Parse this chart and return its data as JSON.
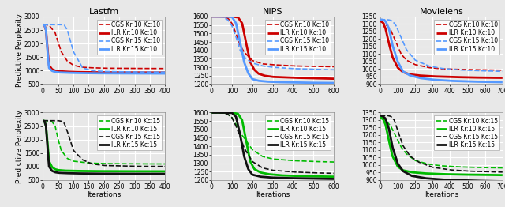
{
  "datasets": {
    "lastfm_top": {
      "title": "Lastfm",
      "xlim": [
        0,
        400
      ],
      "ylim": [
        500,
        3000
      ],
      "yticks": [
        500,
        1000,
        1500,
        2000,
        2500,
        3000
      ],
      "xticks": [
        0,
        50,
        100,
        150,
        200,
        250,
        300,
        350,
        400
      ],
      "series": [
        {
          "label": "CGS Kr:10 Kc:10",
          "color": "#cc0000",
          "style": "dashed",
          "lw": 1.2,
          "x": [
            1,
            10,
            20,
            40,
            60,
            80,
            100,
            125,
            150,
            200,
            250,
            300,
            350,
            400
          ],
          "y": [
            2700,
            2700,
            2680,
            2400,
            1700,
            1350,
            1200,
            1130,
            1110,
            1090,
            1085,
            1082,
            1080,
            1078
          ]
        },
        {
          "label": "ILR Kr:10 Kc:10",
          "color": "#cc0000",
          "style": "solid",
          "lw": 2.0,
          "x": [
            1,
            5,
            10,
            15,
            20,
            30,
            40,
            50,
            70,
            100,
            150,
            200,
            300,
            400
          ],
          "y": [
            2700,
            2680,
            2500,
            1800,
            1200,
            1050,
            1000,
            980,
            965,
            950,
            940,
            935,
            930,
            928
          ]
        },
        {
          "label": "CGS Kr:15 Kc:10",
          "color": "#5599ff",
          "style": "dashed",
          "lw": 1.2,
          "x": [
            1,
            10,
            30,
            50,
            60,
            70,
            80,
            100,
            130,
            160,
            200,
            250,
            300,
            350,
            400
          ],
          "y": [
            2700,
            2700,
            2700,
            2700,
            2700,
            2680,
            2500,
            1700,
            1100,
            1000,
            970,
            960,
            952,
            948,
            945
          ]
        },
        {
          "label": "ILR Kr:15 Kc:10",
          "color": "#5599ff",
          "style": "solid",
          "lw": 2.0,
          "x": [
            1,
            5,
            10,
            15,
            20,
            30,
            40,
            50,
            70,
            100,
            150,
            200,
            300,
            400
          ],
          "y": [
            2700,
            2690,
            2500,
            1700,
            1100,
            990,
            950,
            935,
            925,
            915,
            905,
            900,
            895,
            892
          ]
        }
      ]
    },
    "nips_top": {
      "title": "NIPS",
      "xlim": [
        0,
        600
      ],
      "ylim": [
        1200,
        1600
      ],
      "yticks": [
        1200,
        1250,
        1300,
        1350,
        1400,
        1450,
        1500,
        1550,
        1600
      ],
      "xticks": [
        0,
        100,
        200,
        300,
        400,
        500,
        600
      ],
      "series": [
        {
          "label": "CGS Kr:10 Kc:10",
          "color": "#cc0000",
          "style": "dashed",
          "lw": 1.2,
          "x": [
            1,
            50,
            80,
            100,
            120,
            140,
            160,
            200,
            250,
            300,
            400,
            500,
            600
          ],
          "y": [
            1600,
            1600,
            1590,
            1560,
            1500,
            1430,
            1390,
            1340,
            1320,
            1315,
            1308,
            1305,
            1303
          ]
        },
        {
          "label": "ILR Kr:10 Kc:10",
          "color": "#cc0000",
          "style": "solid",
          "lw": 2.0,
          "x": [
            1,
            50,
            100,
            130,
            150,
            170,
            190,
            210,
            230,
            260,
            300,
            400,
            500,
            600
          ],
          "y": [
            1600,
            1600,
            1600,
            1595,
            1560,
            1440,
            1330,
            1285,
            1262,
            1250,
            1243,
            1238,
            1235,
            1232
          ]
        },
        {
          "label": "CGS Kr:15 Kc:10",
          "color": "#5599ff",
          "style": "dashed",
          "lw": 1.2,
          "x": [
            1,
            50,
            80,
            100,
            120,
            140,
            160,
            200,
            250,
            300,
            400,
            500,
            600
          ],
          "y": [
            1600,
            1600,
            1580,
            1545,
            1480,
            1400,
            1360,
            1325,
            1308,
            1300,
            1292,
            1288,
            1285
          ]
        },
        {
          "label": "ILR Kr:15 Kc:10",
          "color": "#5599ff",
          "style": "solid",
          "lw": 2.0,
          "x": [
            1,
            50,
            100,
            120,
            140,
            160,
            180,
            200,
            230,
            270,
            320,
            400,
            500,
            600
          ],
          "y": [
            1600,
            1600,
            1598,
            1560,
            1450,
            1330,
            1265,
            1230,
            1220,
            1215,
            1212,
            1210,
            1208,
            1207
          ]
        }
      ]
    },
    "movielens_top": {
      "title": "Movielens",
      "xlim": [
        0,
        700
      ],
      "ylim": [
        900,
        1350
      ],
      "yticks": [
        900,
        950,
        1000,
        1050,
        1100,
        1150,
        1200,
        1250,
        1300,
        1350
      ],
      "xticks": [
        0,
        100,
        200,
        300,
        400,
        500,
        600,
        700
      ],
      "series": [
        {
          "label": "CGS Kr:10 Kc:10",
          "color": "#cc0000",
          "style": "dashed",
          "lw": 1.2,
          "x": [
            1,
            30,
            60,
            90,
            120,
            150,
            200,
            280,
            350,
            450,
            550,
            650,
            700
          ],
          "y": [
            1320,
            1300,
            1260,
            1180,
            1100,
            1060,
            1030,
            1010,
            1002,
            998,
            996,
            994,
            993
          ]
        },
        {
          "label": "ILR Kr:10 Kc:10",
          "color": "#cc0000",
          "style": "solid",
          "lw": 2.0,
          "x": [
            1,
            15,
            30,
            50,
            70,
            100,
            130,
            170,
            220,
            300,
            400,
            500,
            600,
            700
          ],
          "y": [
            1320,
            1310,
            1270,
            1170,
            1080,
            1010,
            980,
            965,
            958,
            952,
            948,
            945,
            943,
            942
          ]
        },
        {
          "label": "CGS Kr:15 Kc:10",
          "color": "#5599ff",
          "style": "dashed",
          "lw": 1.2,
          "x": [
            1,
            30,
            50,
            70,
            90,
            120,
            150,
            200,
            280,
            350,
            450,
            550,
            650,
            700
          ],
          "y": [
            1330,
            1330,
            1328,
            1320,
            1290,
            1210,
            1130,
            1060,
            1020,
            1005,
            995,
            990,
            987,
            985
          ]
        },
        {
          "label": "ILR Kr:15 Kc:10",
          "color": "#5599ff",
          "style": "solid",
          "lw": 2.0,
          "x": [
            1,
            15,
            30,
            50,
            70,
            100,
            130,
            170,
            230,
            300,
            400,
            500,
            600,
            700
          ],
          "y": [
            1330,
            1328,
            1320,
            1270,
            1160,
            1050,
            985,
            958,
            940,
            930,
            922,
            918,
            915,
            913
          ]
        }
      ]
    },
    "lastfm_bot": {
      "xlim": [
        0,
        400
      ],
      "ylim": [
        500,
        3000
      ],
      "yticks": [
        500,
        1000,
        1500,
        2000,
        2500,
        3000
      ],
      "xticks": [
        0,
        50,
        100,
        150,
        200,
        250,
        300,
        350,
        400
      ],
      "series": [
        {
          "label": "CGS Kr:10 Kc:15",
          "color": "#00bb00",
          "style": "dashed",
          "lw": 1.2,
          "x": [
            1,
            10,
            20,
            30,
            40,
            50,
            60,
            80,
            100,
            150,
            200,
            300,
            400
          ],
          "y": [
            2700,
            2700,
            2690,
            2660,
            2500,
            2000,
            1600,
            1300,
            1200,
            1130,
            1110,
            1100,
            1097
          ]
        },
        {
          "label": "ILR Kr:10 Kc:15",
          "color": "#00bb00",
          "style": "solid",
          "lw": 2.0,
          "x": [
            1,
            5,
            10,
            15,
            20,
            30,
            40,
            50,
            70,
            100,
            150,
            200,
            300,
            400
          ],
          "y": [
            2700,
            2680,
            2500,
            1900,
            1200,
            980,
            900,
            870,
            850,
            840,
            832,
            828,
            824,
            822
          ]
        },
        {
          "label": "CGS Kr:15 Kc:15",
          "color": "#111111",
          "style": "dashed",
          "lw": 1.2,
          "x": [
            1,
            10,
            30,
            50,
            60,
            70,
            80,
            100,
            130,
            160,
            200,
            300,
            400
          ],
          "y": [
            2700,
            2700,
            2700,
            2700,
            2680,
            2600,
            2300,
            1600,
            1250,
            1100,
            1040,
            1010,
            1005
          ]
        },
        {
          "label": "ILR Kr:15 Kc:15",
          "color": "#111111",
          "style": "solid",
          "lw": 2.0,
          "x": [
            1,
            5,
            10,
            15,
            20,
            30,
            40,
            50,
            70,
            100,
            150,
            200,
            300,
            400
          ],
          "y": [
            2700,
            2680,
            2500,
            1700,
            1000,
            840,
            790,
            770,
            758,
            748,
            740,
            736,
            732,
            730
          ]
        }
      ]
    },
    "nips_bot": {
      "xlim": [
        0,
        600
      ],
      "ylim": [
        1200,
        1600
      ],
      "yticks": [
        1200,
        1250,
        1300,
        1350,
        1400,
        1450,
        1500,
        1550,
        1600
      ],
      "xticks": [
        0,
        100,
        200,
        300,
        400,
        500,
        600
      ],
      "series": [
        {
          "label": "CGS Kr:10 Kc:15",
          "color": "#00bb00",
          "style": "dashed",
          "lw": 1.2,
          "x": [
            1,
            50,
            80,
            100,
            120,
            140,
            160,
            200,
            250,
            300,
            400,
            500,
            600
          ],
          "y": [
            1600,
            1600,
            1590,
            1570,
            1530,
            1480,
            1450,
            1380,
            1340,
            1325,
            1315,
            1310,
            1307
          ]
        },
        {
          "label": "ILR Kr:10 Kc:15",
          "color": "#00bb00",
          "style": "solid",
          "lw": 2.0,
          "x": [
            1,
            50,
            100,
            130,
            150,
            170,
            190,
            210,
            240,
            280,
            340,
            400,
            500,
            600
          ],
          "y": [
            1600,
            1600,
            1600,
            1592,
            1555,
            1430,
            1310,
            1265,
            1245,
            1235,
            1228,
            1225,
            1222,
            1220
          ]
        },
        {
          "label": "CGS Kr:15 Kc:15",
          "color": "#111111",
          "style": "dashed",
          "lw": 1.2,
          "x": [
            1,
            50,
            80,
            100,
            120,
            140,
            160,
            200,
            250,
            300,
            400,
            500,
            600
          ],
          "y": [
            1600,
            1600,
            1590,
            1570,
            1520,
            1455,
            1390,
            1310,
            1272,
            1258,
            1248,
            1243,
            1240
          ]
        },
        {
          "label": "ILR Kr:15 Kc:15",
          "color": "#111111",
          "style": "solid",
          "lw": 2.0,
          "x": [
            1,
            50,
            100,
            120,
            140,
            160,
            180,
            200,
            240,
            290,
            360,
            450,
            550,
            600
          ],
          "y": [
            1600,
            1600,
            1598,
            1575,
            1470,
            1340,
            1265,
            1232,
            1220,
            1215,
            1212,
            1210,
            1208,
            1207
          ]
        }
      ]
    },
    "movielens_bot": {
      "xlim": [
        0,
        700
      ],
      "ylim": [
        900,
        1350
      ],
      "yticks": [
        900,
        950,
        1000,
        1050,
        1100,
        1150,
        1200,
        1250,
        1300,
        1350
      ],
      "xticks": [
        0,
        100,
        200,
        300,
        400,
        500,
        600,
        700
      ],
      "series": [
        {
          "label": "CGS Kr:10 Kc:15",
          "color": "#00bb00",
          "style": "dashed",
          "lw": 1.2,
          "x": [
            1,
            30,
            60,
            90,
            120,
            150,
            200,
            280,
            350,
            450,
            550,
            650,
            700
          ],
          "y": [
            1310,
            1300,
            1260,
            1190,
            1120,
            1075,
            1030,
            1005,
            995,
            988,
            984,
            982,
            981
          ]
        },
        {
          "label": "ILR Kr:10 Kc:15",
          "color": "#00bb00",
          "style": "solid",
          "lw": 2.0,
          "x": [
            1,
            15,
            30,
            50,
            70,
            100,
            130,
            180,
            250,
            350,
            450,
            560,
            650,
            700
          ],
          "y": [
            1320,
            1310,
            1270,
            1160,
            1060,
            990,
            965,
            952,
            945,
            940,
            937,
            935,
            934,
            933
          ]
        },
        {
          "label": "CGS Kr:15 Kc:15",
          "color": "#111111",
          "style": "dashed",
          "lw": 1.2,
          "x": [
            1,
            20,
            40,
            60,
            80,
            100,
            130,
            170,
            220,
            300,
            400,
            500,
            600,
            700
          ],
          "y": [
            1330,
            1330,
            1330,
            1325,
            1300,
            1230,
            1130,
            1060,
            1020,
            985,
            968,
            960,
            956,
            953
          ]
        },
        {
          "label": "ILR Kr:15 Kc:15",
          "color": "#111111",
          "style": "solid",
          "lw": 2.0,
          "x": [
            1,
            15,
            30,
            50,
            70,
            100,
            130,
            180,
            260,
            370,
            500,
            600,
            700
          ],
          "y": [
            1330,
            1325,
            1310,
            1240,
            1120,
            1010,
            960,
            928,
            912,
            902,
            897,
            894,
            892
          ]
        }
      ]
    }
  },
  "ylabel": "Predictive Perplexity",
  "xlabel": "Iterations",
  "bg_color": "#e8e8e8",
  "grid_color": "#ffffff",
  "title_fontsize": 8,
  "label_fontsize": 6.5,
  "tick_fontsize": 5.5,
  "legend_fontsize": 5.5
}
